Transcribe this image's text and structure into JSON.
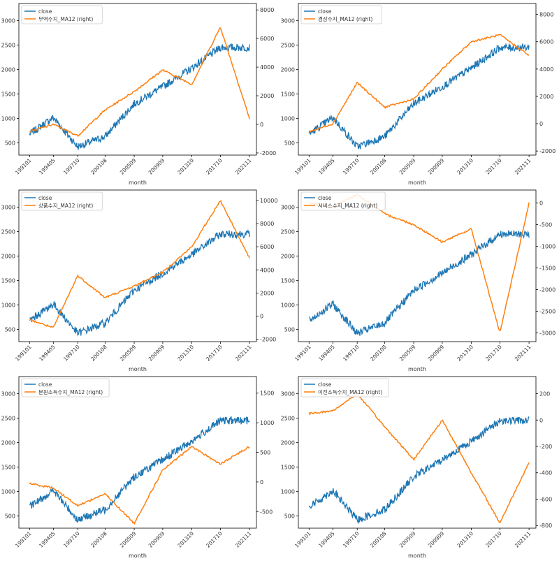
{
  "figure": {
    "x_axis_label": "month"
  },
  "colors": {
    "left_series": "#1f77b4",
    "right_series": "#ff7f0e",
    "axes": "#000000"
  },
  "chart_data": [
    {
      "type": "line",
      "xlabel": "month",
      "x_ticks": [
        "199101",
        "199405",
        "199710",
        "200108",
        "200509",
        "200909",
        "201310",
        "201710",
        "202111"
      ],
      "x_range": [
        "199101",
        "202111"
      ],
      "left_axis": {
        "ylim": [
          250,
          3350
        ],
        "ticks": [
          500,
          1000,
          1500,
          2000,
          2500,
          3000
        ]
      },
      "right_axis": {
        "ylim": [
          -2150,
          8450
        ],
        "ticks": [
          -2000,
          0,
          2000,
          4000,
          6000,
          8000
        ]
      },
      "legend_position": "top-left",
      "series": [
        {
          "name": "close",
          "axis": "left",
          "color": "#1f77b4",
          "x": [
            "199101",
            "199405",
            "199710",
            "200108",
            "200509",
            "200909",
            "201310",
            "201710",
            "202111"
          ],
          "values": [
            680,
            1020,
            420,
            630,
            1300,
            1650,
            2030,
            2450,
            2450
          ]
        },
        {
          "name": "무역수지_MA12 (right)",
          "axis": "right",
          "color": "#ff7f0e",
          "x": [
            "199101",
            "199405",
            "199710",
            "200108",
            "200509",
            "200909",
            "201310",
            "201710",
            "202111"
          ],
          "values": [
            -500,
            0,
            -800,
            1000,
            2300,
            3800,
            2800,
            6800,
            400
          ]
        }
      ]
    },
    {
      "type": "line",
      "xlabel": "month",
      "x_ticks": [
        "199101",
        "199405",
        "199710",
        "200108",
        "200509",
        "200909",
        "201310",
        "201710",
        "202111"
      ],
      "x_range": [
        "199101",
        "202111"
      ],
      "left_axis": {
        "ylim": [
          250,
          3350
        ],
        "ticks": [
          500,
          1000,
          1500,
          2000,
          2500,
          3000
        ]
      },
      "right_axis": {
        "ylim": [
          -2300,
          8800
        ],
        "ticks": [
          -2000,
          0,
          2000,
          4000,
          6000,
          8000
        ]
      },
      "legend_position": "top-left",
      "series": [
        {
          "name": "close",
          "axis": "left",
          "color": "#1f77b4",
          "x": [
            "199101",
            "199405",
            "199710",
            "200108",
            "200509",
            "200909",
            "201310",
            "201710",
            "202111"
          ],
          "values": [
            680,
            1020,
            420,
            630,
            1300,
            1650,
            2030,
            2450,
            2450
          ]
        },
        {
          "name": "경상수지_MA12 (right)",
          "axis": "right",
          "color": "#ff7f0e",
          "x": [
            "199101",
            "199405",
            "199710",
            "200108",
            "200509",
            "200909",
            "201310",
            "201710",
            "202111"
          ],
          "values": [
            -600,
            0,
            3000,
            1200,
            1800,
            4000,
            6000,
            6500,
            5000
          ]
        }
      ]
    },
    {
      "type": "line",
      "xlabel": "month",
      "x_ticks": [
        "199101",
        "199405",
        "199710",
        "200108",
        "200509",
        "200909",
        "201310",
        "201710",
        "202111"
      ],
      "x_range": [
        "199101",
        "202111"
      ],
      "left_axis": {
        "ylim": [
          250,
          3350
        ],
        "ticks": [
          500,
          1000,
          1500,
          2000,
          2500,
          3000
        ]
      },
      "right_axis": {
        "ylim": [
          -2200,
          10900
        ],
        "ticks": [
          -2000,
          0,
          2000,
          4000,
          6000,
          8000,
          10000
        ]
      },
      "legend_position": "top-left",
      "series": [
        {
          "name": "close",
          "axis": "left",
          "color": "#1f77b4",
          "x": [
            "199101",
            "199405",
            "199710",
            "200108",
            "200509",
            "200909",
            "201310",
            "201710",
            "202111"
          ],
          "values": [
            680,
            1020,
            420,
            630,
            1300,
            1650,
            2030,
            2450,
            2450
          ]
        },
        {
          "name": "상품수지_MA12 (right)",
          "axis": "right",
          "color": "#ff7f0e",
          "x": [
            "199101",
            "199405",
            "199710",
            "200108",
            "200509",
            "200909",
            "201310",
            "201710",
            "202111"
          ],
          "values": [
            -300,
            -1000,
            3500,
            1600,
            2600,
            3800,
            6000,
            10000,
            5000
          ]
        }
      ]
    },
    {
      "type": "line",
      "xlabel": "month",
      "x_ticks": [
        "199101",
        "199405",
        "199710",
        "200108",
        "200509",
        "200909",
        "201310",
        "201710",
        "202111"
      ],
      "x_range": [
        "199101",
        "202111"
      ],
      "left_axis": {
        "ylim": [
          250,
          3350
        ],
        "ticks": [
          500,
          1000,
          1500,
          2000,
          2500,
          3000
        ]
      },
      "right_axis": {
        "ylim": [
          -3200,
          300
        ],
        "ticks": [
          0,
          -500,
          -1000,
          -1500,
          -2000,
          -2500,
          -3000
        ]
      },
      "legend_position": "top-left",
      "series": [
        {
          "name": "close",
          "axis": "left",
          "color": "#1f77b4",
          "x": [
            "199101",
            "199405",
            "199710",
            "200108",
            "200509",
            "200909",
            "201310",
            "201710",
            "202111"
          ],
          "values": [
            680,
            1020,
            420,
            630,
            1300,
            1650,
            2030,
            2450,
            2450
          ]
        },
        {
          "name": "서비스수지_MA12 (right)",
          "axis": "right",
          "color": "#ff7f0e",
          "x": [
            "199101",
            "199405",
            "199710",
            "200108",
            "200509",
            "200909",
            "201310",
            "201710",
            "202111"
          ],
          "values": [
            0,
            -100,
            200,
            -250,
            -500,
            -900,
            -600,
            -3000,
            0
          ]
        }
      ]
    },
    {
      "type": "line",
      "xlabel": "month",
      "x_ticks": [
        "199101",
        "199405",
        "199710",
        "200108",
        "200509",
        "200909",
        "201310",
        "201710",
        "202111"
      ],
      "x_range": [
        "199101",
        "202111"
      ],
      "left_axis": {
        "ylim": [
          250,
          3350
        ],
        "ticks": [
          500,
          1000,
          1500,
          2000,
          2500,
          3000
        ]
      },
      "right_axis": {
        "ylim": [
          -780,
          1780
        ],
        "ticks": [
          -500,
          0,
          500,
          1000,
          1500
        ]
      },
      "legend_position": "top-left",
      "series": [
        {
          "name": "close",
          "axis": "left",
          "color": "#1f77b4",
          "x": [
            "199101",
            "199405",
            "199710",
            "200108",
            "200509",
            "200909",
            "201310",
            "201710",
            "202111"
          ],
          "values": [
            680,
            1020,
            420,
            630,
            1300,
            1650,
            2030,
            2450,
            2450
          ]
        },
        {
          "name": "본원소득수지_MA12 (right)",
          "axis": "right",
          "color": "#ff7f0e",
          "x": [
            "199101",
            "199405",
            "199710",
            "200108",
            "200509",
            "200909",
            "201310",
            "201710",
            "202111"
          ],
          "values": [
            -25,
            -100,
            -400,
            -200,
            -700,
            200,
            600,
            300,
            600
          ]
        }
      ]
    },
    {
      "type": "line",
      "xlabel": "month",
      "x_ticks": [
        "199101",
        "199405",
        "199710",
        "200108",
        "200509",
        "200909",
        "201310",
        "201710",
        "202111"
      ],
      "x_range": [
        "199101",
        "202111"
      ],
      "left_axis": {
        "ylim": [
          250,
          3350
        ],
        "ticks": [
          500,
          1000,
          1500,
          2000,
          2500,
          3000
        ]
      },
      "right_axis": {
        "ylim": [
          -820,
          330
        ],
        "ticks": [
          200,
          0,
          -200,
          -400,
          -600,
          -800
        ]
      },
      "legend_position": "top-left",
      "series": [
        {
          "name": "close",
          "axis": "left",
          "color": "#1f77b4",
          "x": [
            "199101",
            "199405",
            "199710",
            "200108",
            "200509",
            "200909",
            "201310",
            "201710",
            "202111"
          ],
          "values": [
            680,
            1020,
            420,
            630,
            1300,
            1650,
            2030,
            2450,
            2450
          ]
        },
        {
          "name": "이전소득수지_MA12 (right)",
          "axis": "right",
          "color": "#ff7f0e",
          "x": [
            "199101",
            "199405",
            "199710",
            "200108",
            "200509",
            "200909",
            "201310",
            "201710",
            "202111"
          ],
          "values": [
            50,
            70,
            200,
            -50,
            -300,
            0,
            -400,
            -780,
            -320
          ]
        }
      ]
    }
  ]
}
